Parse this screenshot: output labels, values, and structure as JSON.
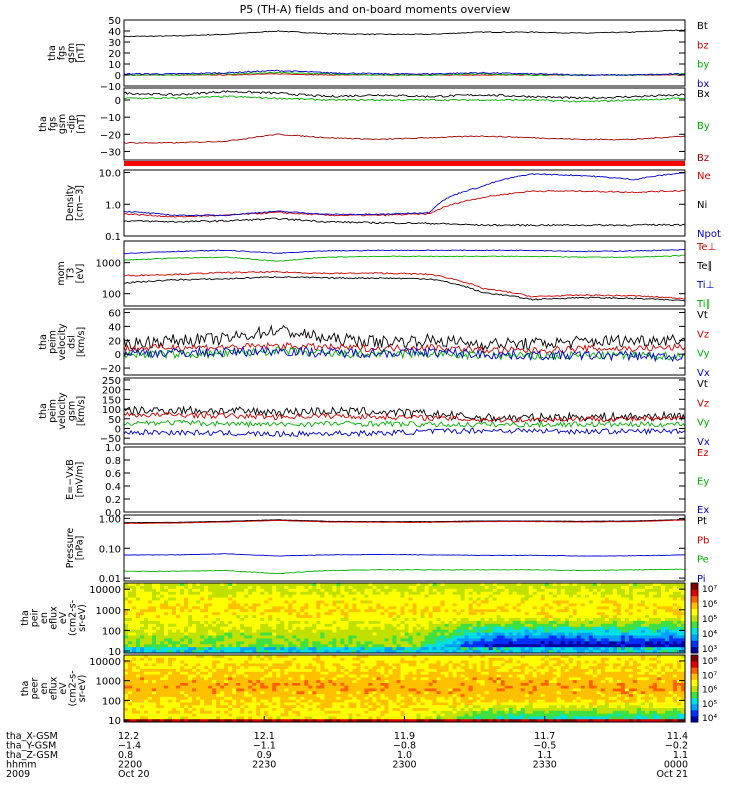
{
  "chart_data": {
    "type": "line",
    "title": "P5 (TH-A) fields and on-board moments overview",
    "panels": [
      {
        "id": "fgs_gsm",
        "ylabel": [
          "tha",
          "fgs",
          "gsm",
          "[nT]"
        ],
        "yticks": [
          "50",
          "40",
          "30",
          "20",
          "10",
          "0",
          "−10"
        ],
        "ylim": [
          -10,
          50
        ],
        "scale": "linear",
        "legend": [
          {
            "name": "Bt",
            "color": "#000000"
          },
          {
            "name": "bz",
            "color": "#d00000"
          },
          {
            "name": "by",
            "color": "#00b000"
          },
          {
            "name": "bx",
            "color": "#0000d0"
          }
        ],
        "series": [
          {
            "name": "Bt",
            "color": "#000000",
            "base": [
              35,
              35.5,
              37,
              40,
              37.5,
              37,
              37,
              39,
              39,
              38,
              39,
              41
            ],
            "noise": 0.4
          },
          {
            "name": "bz",
            "color": "#d00000",
            "base": [
              0,
              0,
              0,
              1,
              0,
              0,
              0,
              0,
              0,
              0,
              0,
              0
            ],
            "noise": 0.3
          },
          {
            "name": "by",
            "color": "#00b000",
            "base": [
              0,
              0,
              1,
              2,
              1,
              0,
              0,
              1,
              0,
              0,
              0,
              1
            ],
            "noise": 0.5
          },
          {
            "name": "bx",
            "color": "#0000d0",
            "base": [
              1,
              1,
              2,
              4,
              2,
              1,
              1,
              2,
              1,
              0,
              0,
              1
            ],
            "noise": 0.6
          }
        ]
      },
      {
        "id": "fgs_gsm_nodip",
        "ylabel": [
          "tha",
          "fgs",
          "gsm",
          "-dip",
          "[nT]"
        ],
        "yticks": [
          "0",
          "−10",
          "−20",
          "−30"
        ],
        "ylim": [
          -35,
          7
        ],
        "scale": "linear",
        "legend": [
          {
            "name": "Bx",
            "color": "#000000"
          },
          {
            "name": "By",
            "color": "#00b000"
          },
          {
            "name": "Bz",
            "color": "#a00000"
          }
        ],
        "series": [
          {
            "name": "Bx",
            "color": "#000000",
            "base": [
              4,
              3,
              5,
              4,
              2,
              3,
              2,
              3,
              2,
              1,
              2,
              3
            ],
            "noise": 0.6
          },
          {
            "name": "By",
            "color": "#00b000",
            "base": [
              1,
              1,
              2,
              1,
              0,
              0,
              0,
              0,
              0,
              -1,
              0,
              1
            ],
            "noise": 0.5
          },
          {
            "name": "Bz",
            "color": "#a00000",
            "base": [
              -25,
              -25,
              -24,
              -20,
              -22,
              -23,
              -22,
              -21,
              -22,
              -23,
              -23,
              -21
            ],
            "noise": 0.3
          }
        ]
      },
      {
        "id": "density",
        "ylabel": [
          "Density",
          "[cm−3]"
        ],
        "yticks": [
          "10.0",
          "1.0",
          "0.1"
        ],
        "ylim": [
          0.1,
          12
        ],
        "scale": "log",
        "legend": [
          {
            "name": "Ne",
            "color": "#d00000"
          },
          {
            "name": "Ni",
            "color": "#000000"
          },
          {
            "name": "Npot",
            "color": "#0000d0"
          }
        ],
        "series": [
          {
            "name": "Ne",
            "color": "#d00000",
            "base": [
              0.5,
              0.4,
              0.45,
              0.55,
              0.45,
              0.45,
              0.5,
              1.6,
              2.6,
              2.6,
              2.4,
              2.7
            ],
            "noise": 0.05
          },
          {
            "name": "Ni",
            "color": "#000000",
            "base": [
              0.3,
              0.28,
              0.3,
              0.35,
              0.28,
              0.26,
              0.25,
              0.22,
              0.22,
              0.22,
              0.22,
              0.23
            ],
            "noise": 0.06
          },
          {
            "name": "Npot",
            "color": "#0000d0",
            "base": [
              0.6,
              0.45,
              0.45,
              0.6,
              0.48,
              0.48,
              0.55,
              3.5,
              9,
              8,
              6,
              10
            ],
            "noise": 0.04
          }
        ]
      },
      {
        "id": "temperature",
        "ylabel": [
          "mom",
          "T3",
          "[eV]"
        ],
        "yticks": [
          "1000",
          "100"
        ],
        "ylim": [
          40,
          5000
        ],
        "scale": "log",
        "legend": [
          {
            "name": "Te⊥",
            "color": "#d00000"
          },
          {
            "name": "Te∥",
            "color": "#000000"
          },
          {
            "name": "Ti⊥",
            "color": "#0000d0"
          },
          {
            "name": "Ti∥",
            "color": "#00b000"
          }
        ],
        "series": [
          {
            "name": "Te⊥",
            "color": "#d00000",
            "base": [
              380,
              420,
              480,
              500,
              450,
              460,
              420,
              150,
              80,
              90,
              85,
              70
            ],
            "noise": 0.05
          },
          {
            "name": "Te∥",
            "color": "#000000",
            "base": [
              220,
              280,
              300,
              350,
              320,
              320,
              300,
              110,
              65,
              75,
              70,
              60
            ],
            "noise": 0.05
          },
          {
            "name": "Ti⊥",
            "color": "#0000d0",
            "base": [
              2000,
              2300,
              2500,
              2000,
              2400,
              2500,
              2500,
              2500,
              2500,
              2300,
              2400,
              2600
            ],
            "noise": 0.03
          },
          {
            "name": "Ti∥",
            "color": "#00b000",
            "base": [
              1200,
              1400,
              1500,
              1100,
              1500,
              1600,
              1600,
              1600,
              1600,
              1500,
              1500,
              1700
            ],
            "noise": 0.03
          }
        ]
      },
      {
        "id": "peim_velocity_dsl",
        "ylabel": [
          "tha",
          "peim",
          "velocity",
          "dsl",
          "[km/s]"
        ],
        "yticks": [
          "60",
          "40",
          "20",
          "0",
          "−20"
        ],
        "ylim": [
          -30,
          65
        ],
        "scale": "linear",
        "legend": [
          {
            "name": "Vt",
            "color": "#000000"
          },
          {
            "name": "Vz",
            "color": "#d00000"
          },
          {
            "name": "Vy",
            "color": "#00b000"
          },
          {
            "name": "Vx",
            "color": "#0000d0"
          }
        ],
        "series": [
          {
            "name": "Vt",
            "color": "#000000",
            "base": [
              15,
              20,
              22,
              35,
              22,
              18,
              20,
              15,
              15,
              18,
              20,
              22
            ],
            "noise": 9
          },
          {
            "name": "Vz",
            "color": "#d00000",
            "base": [
              8,
              10,
              10,
              12,
              10,
              8,
              10,
              6,
              5,
              8,
              8,
              10
            ],
            "noise": 5
          },
          {
            "name": "Vy",
            "color": "#00b000",
            "base": [
              0,
              0,
              0,
              5,
              0,
              0,
              0,
              -2,
              -3,
              -2,
              -2,
              -3
            ],
            "noise": 6
          },
          {
            "name": "Vx",
            "color": "#0000d0",
            "base": [
              2,
              2,
              3,
              5,
              2,
              2,
              3,
              0,
              -2,
              -2,
              -2,
              -5
            ],
            "noise": 7
          }
        ]
      },
      {
        "id": "peim_velocity_gsm",
        "ylabel": [
          "tha",
          "peim",
          "velocity",
          "gsm",
          "[km/s]"
        ],
        "yticks": [
          "250",
          "200",
          "150",
          "100",
          "50",
          "0",
          "−50"
        ],
        "ylim": [
          -80,
          260
        ],
        "scale": "linear",
        "legend": [
          {
            "name": "Vt",
            "color": "#000000"
          },
          {
            "name": "Vz",
            "color": "#d00000"
          },
          {
            "name": "Vy",
            "color": "#00b000"
          },
          {
            "name": "Vx",
            "color": "#0000d0"
          }
        ],
        "series": [
          {
            "name": "Vt",
            "color": "#000000",
            "base": [
              90,
              95,
              90,
              85,
              90,
              85,
              75,
              55,
              55,
              60,
              60,
              65
            ],
            "noise": 22
          },
          {
            "name": "Vz",
            "color": "#d00000",
            "base": [
              70,
              70,
              65,
              60,
              65,
              60,
              55,
              45,
              45,
              50,
              48,
              50
            ],
            "noise": 14
          },
          {
            "name": "Vy",
            "color": "#00b000",
            "base": [
              30,
              30,
              25,
              20,
              25,
              25,
              20,
              20,
              20,
              22,
              20,
              22
            ],
            "noise": 14
          },
          {
            "name": "Vx",
            "color": "#0000d0",
            "base": [
              -20,
              -20,
              -25,
              -30,
              -25,
              -25,
              -15,
              -10,
              -12,
              -15,
              -15,
              -12
            ],
            "noise": 14
          }
        ]
      },
      {
        "id": "e_vxb",
        "ylabel": [
          "E=−VxB",
          "[mV/m]"
        ],
        "yticks": [
          "1.0",
          "0.8",
          "0.6",
          "0.4",
          "0.2",
          "0.0"
        ],
        "ylim": [
          0,
          1
        ],
        "scale": "linear",
        "legend": [
          {
            "name": "Ez",
            "color": "#d00000"
          },
          {
            "name": "Ey",
            "color": "#00b000"
          },
          {
            "name": "Ex",
            "color": "#0000d0"
          }
        ],
        "series": []
      },
      {
        "id": "pressure",
        "ylabel": [
          "Pressure",
          "[nPa]"
        ],
        "yticks": [
          "1.00",
          "0.10",
          "0.01"
        ],
        "ylim": [
          0.008,
          1.3
        ],
        "scale": "log",
        "legend": [
          {
            "name": "Pt",
            "color": "#000000"
          },
          {
            "name": "Pb",
            "color": "#d00000"
          },
          {
            "name": "Pe",
            "color": "#00b000"
          },
          {
            "name": "Pi",
            "color": "#0000d0"
          }
        ],
        "series": [
          {
            "name": "Pt",
            "color": "#000000",
            "base": [
              0.72,
              0.74,
              0.8,
              0.9,
              0.8,
              0.78,
              0.78,
              0.82,
              0.82,
              0.8,
              0.82,
              0.92
            ],
            "noise": 0.01
          },
          {
            "name": "Pb",
            "color": "#d00000",
            "base": [
              0.68,
              0.7,
              0.76,
              0.85,
              0.76,
              0.74,
              0.74,
              0.78,
              0.78,
              0.76,
              0.78,
              0.88
            ],
            "noise": 0.01
          },
          {
            "name": "Pe",
            "color": "#00b000",
            "base": [
              0.017,
              0.017,
              0.018,
              0.014,
              0.018,
              0.019,
              0.019,
              0.019,
              0.019,
              0.018,
              0.019,
              0.02
            ],
            "noise": 0.02
          },
          {
            "name": "Pi",
            "color": "#0000d0",
            "base": [
              0.06,
              0.06,
              0.065,
              0.055,
              0.06,
              0.062,
              0.06,
              0.058,
              0.058,
              0.055,
              0.056,
              0.06
            ],
            "noise": 0.015
          }
        ]
      },
      {
        "id": "peir_spec",
        "kind": "spectrogram",
        "ylabel": [
          "tha",
          "peir",
          "en",
          "eflux",
          "eV",
          "(cm2-s-",
          "sr-eV)"
        ],
        "yticks": [
          "10000",
          "1000",
          "100",
          "10"
        ],
        "ylim": [
          8,
          20000
        ],
        "scale": "log",
        "colorbar": {
          "ticks": [
            "10⁷",
            "10⁶",
            "10⁵",
            "10⁴",
            "10³"
          ]
        }
      },
      {
        "id": "peer_spec",
        "kind": "spectrogram",
        "ylabel": [
          "tha",
          "peer",
          "en",
          "eflux",
          "eV",
          "(cm2-s-",
          "sr-eV)"
        ],
        "yticks": [
          "10000",
          "1000",
          "100",
          "10"
        ],
        "ylim": [
          8,
          20000
        ],
        "scale": "log",
        "colorbar": {
          "ticks": [
            "10⁸",
            "10⁷",
            "10⁶",
            "10⁵",
            "10⁴"
          ]
        }
      }
    ],
    "xaxis": {
      "rows": [
        {
          "label": "tha_X-GSM",
          "values": [
            "12.2",
            "12.1",
            "11.9",
            "11.7",
            "11.4"
          ]
        },
        {
          "label": "tha_Y-GSM",
          "values": [
            "−1.4",
            "−1.1",
            "−0.8",
            "−0.5",
            "−0.2"
          ]
        },
        {
          "label": "tha_Z-GSM",
          "values": [
            "0.8",
            "0.9",
            "1.0",
            "1.1",
            "1.1"
          ]
        },
        {
          "label": "hhmm",
          "values": [
            "2200",
            "2230",
            "2300",
            "2330",
            "0000"
          ]
        },
        {
          "label": "2009",
          "values": [
            "Oct 20",
            "",
            "",
            "",
            "Oct 21"
          ]
        }
      ]
    }
  }
}
